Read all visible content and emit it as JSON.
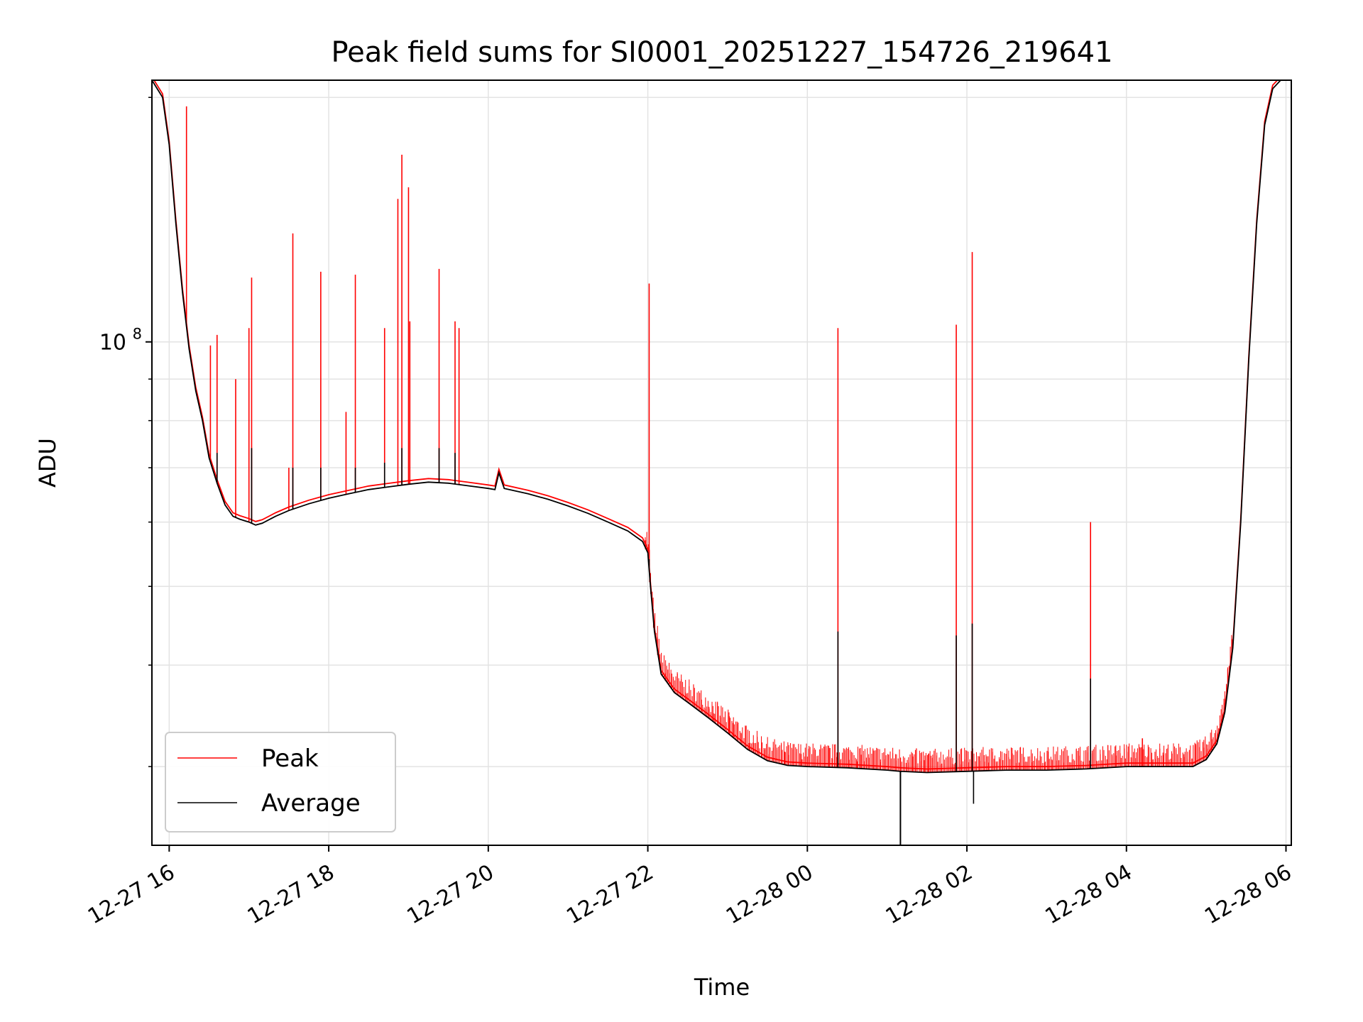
{
  "chart_data": {
    "type": "line",
    "title": "Peak field sums for SI0001_20251227_154726_219641",
    "xlabel": "Time",
    "ylabel": "ADU",
    "y_scale": "log",
    "xlim": [
      "2025-12-27 15:47",
      "2025-12-28 06:04"
    ],
    "ylim": [
      24000000,
      210000000
    ],
    "grid": true,
    "legend": {
      "placement": "lower-left",
      "entries": [
        "Peak",
        "Average"
      ]
    },
    "x_ticks": [
      {
        "value": "2025-12-27 16:00",
        "label": "12-27 16"
      },
      {
        "value": "2025-12-27 18:00",
        "label": "12-27 18"
      },
      {
        "value": "2025-12-27 20:00",
        "label": "12-27 20"
      },
      {
        "value": "2025-12-27 22:00",
        "label": "12-27 22"
      },
      {
        "value": "2025-12-28 00:00",
        "label": "12-28 00"
      },
      {
        "value": "2025-12-28 02:00",
        "label": "12-28 02"
      },
      {
        "value": "2025-12-28 04:00",
        "label": "12-28 04"
      },
      {
        "value": "2025-12-28 06:00",
        "label": "12-28 06"
      }
    ],
    "y_ticks": [
      {
        "value": 100000000,
        "label": "10^8"
      }
    ],
    "series": [
      {
        "name": "Average",
        "color": "#000000",
        "points": [
          [
            "2025-12-27 15:47",
            210000000
          ],
          [
            "2025-12-27 15:55",
            200000000
          ],
          [
            "2025-12-27 16:00",
            175000000
          ],
          [
            "2025-12-27 16:05",
            140000000
          ],
          [
            "2025-12-27 16:10",
            115000000
          ],
          [
            "2025-12-27 16:15",
            98000000
          ],
          [
            "2025-12-27 16:20",
            87000000
          ],
          [
            "2025-12-27 16:25",
            80000000
          ],
          [
            "2025-12-27 16:30",
            72000000
          ],
          [
            "2025-12-27 16:36",
            67000000
          ],
          [
            "2025-12-27 16:42",
            63000000
          ],
          [
            "2025-12-27 16:48",
            61000000
          ],
          [
            "2025-12-27 16:53",
            60500000
          ],
          [
            "2025-12-27 17:00",
            60000000
          ],
          [
            "2025-12-27 17:05",
            59500000
          ],
          [
            "2025-12-27 17:10",
            59800000
          ],
          [
            "2025-12-27 17:20",
            61000000
          ],
          [
            "2025-12-27 17:30",
            62000000
          ],
          [
            "2025-12-27 17:45",
            63200000
          ],
          [
            "2025-12-27 18:00",
            64200000
          ],
          [
            "2025-12-27 18:15",
            65000000
          ],
          [
            "2025-12-27 18:30",
            65800000
          ],
          [
            "2025-12-27 18:45",
            66300000
          ],
          [
            "2025-12-27 19:00",
            66800000
          ],
          [
            "2025-12-27 19:15",
            67200000
          ],
          [
            "2025-12-27 19:30",
            67000000
          ],
          [
            "2025-12-27 19:45",
            66500000
          ],
          [
            "2025-12-27 20:00",
            66000000
          ],
          [
            "2025-12-27 20:05",
            65800000
          ],
          [
            "2025-12-27 20:08",
            69000000
          ],
          [
            "2025-12-27 20:12",
            66000000
          ],
          [
            "2025-12-27 20:30",
            65000000
          ],
          [
            "2025-12-27 20:45",
            64000000
          ],
          [
            "2025-12-27 21:00",
            62800000
          ],
          [
            "2025-12-27 21:15",
            61500000
          ],
          [
            "2025-12-27 21:30",
            60000000
          ],
          [
            "2025-12-27 21:45",
            58500000
          ],
          [
            "2025-12-27 21:56",
            56800000
          ],
          [
            "2025-12-27 22:00",
            55000000
          ],
          [
            "2025-12-27 22:02",
            50000000
          ],
          [
            "2025-12-27 22:05",
            44000000
          ],
          [
            "2025-12-27 22:10",
            39000000
          ],
          [
            "2025-12-27 22:20",
            37000000
          ],
          [
            "2025-12-27 22:30",
            36000000
          ],
          [
            "2025-12-27 22:45",
            34500000
          ],
          [
            "2025-12-27 23:00",
            33000000
          ],
          [
            "2025-12-27 23:15",
            31500000
          ],
          [
            "2025-12-27 23:30",
            30500000
          ],
          [
            "2025-12-27 23:45",
            30100000
          ],
          [
            "2025-12-28 00:00",
            30000000
          ],
          [
            "2025-12-28 00:30",
            29900000
          ],
          [
            "2025-12-28 01:00",
            29700000
          ],
          [
            "2025-12-28 01:10",
            29600000
          ],
          [
            "2025-12-28 01:30",
            29500000
          ],
          [
            "2025-12-28 02:00",
            29600000
          ],
          [
            "2025-12-28 02:30",
            29700000
          ],
          [
            "2025-12-28 03:00",
            29700000
          ],
          [
            "2025-12-28 03:30",
            29800000
          ],
          [
            "2025-12-28 04:00",
            30000000
          ],
          [
            "2025-12-28 04:30",
            30000000
          ],
          [
            "2025-12-28 04:50",
            30000000
          ],
          [
            "2025-12-28 05:00",
            30600000
          ],
          [
            "2025-12-28 05:08",
            32000000
          ],
          [
            "2025-12-28 05:14",
            35000000
          ],
          [
            "2025-12-28 05:20",
            42000000
          ],
          [
            "2025-12-28 05:26",
            60000000
          ],
          [
            "2025-12-28 05:32",
            95000000
          ],
          [
            "2025-12-28 05:38",
            140000000
          ],
          [
            "2025-12-28 05:44",
            185000000
          ],
          [
            "2025-12-28 05:50",
            205000000
          ],
          [
            "2025-12-28 05:56",
            210000000
          ],
          [
            "2025-12-28 06:04",
            210000000
          ]
        ],
        "spikes": [
          [
            "2025-12-27 16:36",
            73000000
          ],
          [
            "2025-12-27 16:50",
            61000000
          ],
          [
            "2025-12-27 17:02",
            74000000
          ],
          [
            "2025-12-27 17:33",
            70000000
          ],
          [
            "2025-12-27 17:54",
            70000000
          ],
          [
            "2025-12-27 18:20",
            70000000
          ],
          [
            "2025-12-27 18:42",
            71000000
          ],
          [
            "2025-12-27 18:55",
            74000000
          ],
          [
            "2025-12-27 19:23",
            74000000
          ],
          [
            "2025-12-27 19:35",
            73000000
          ],
          [
            "2025-12-27 22:01",
            54000000
          ],
          [
            "2025-12-28 00:23",
            44000000
          ],
          [
            "2025-12-28 01:52",
            43500000
          ],
          [
            "2025-12-28 02:04",
            45000000
          ],
          [
            "2025-12-28 03:33",
            38500000
          ]
        ]
      },
      {
        "name": "Peak",
        "color": "#ff0000",
        "offset_ratio": 1.01,
        "spikes": [
          [
            "2025-12-27 16:13",
            195000000
          ],
          [
            "2025-12-27 16:31",
            99000000
          ],
          [
            "2025-12-27 16:36",
            102000000
          ],
          [
            "2025-12-27 16:50",
            90000000
          ],
          [
            "2025-12-27 17:00",
            104000000
          ],
          [
            "2025-12-27 17:02",
            120000000
          ],
          [
            "2025-12-27 17:30",
            70000000
          ],
          [
            "2025-12-27 17:33",
            136000000
          ],
          [
            "2025-12-27 17:54",
            122000000
          ],
          [
            "2025-12-27 18:13",
            82000000
          ],
          [
            "2025-12-27 18:20",
            121000000
          ],
          [
            "2025-12-27 18:42",
            104000000
          ],
          [
            "2025-12-27 18:52",
            150000000
          ],
          [
            "2025-12-27 18:55",
            170000000
          ],
          [
            "2025-12-27 19:00",
            155000000
          ],
          [
            "2025-12-27 19:01",
            106000000
          ],
          [
            "2025-12-27 19:23",
            123000000
          ],
          [
            "2025-12-27 19:35",
            106000000
          ],
          [
            "2025-12-27 19:38",
            104000000
          ],
          [
            "2025-12-27 22:01",
            118000000
          ],
          [
            "2025-12-28 00:23",
            104000000
          ],
          [
            "2025-12-28 01:52",
            105000000
          ],
          [
            "2025-12-28 02:04",
            129000000
          ],
          [
            "2025-12-28 03:33",
            60000000
          ],
          [
            "2025-12-28 04:12",
            32500000
          ]
        ]
      }
    ]
  }
}
